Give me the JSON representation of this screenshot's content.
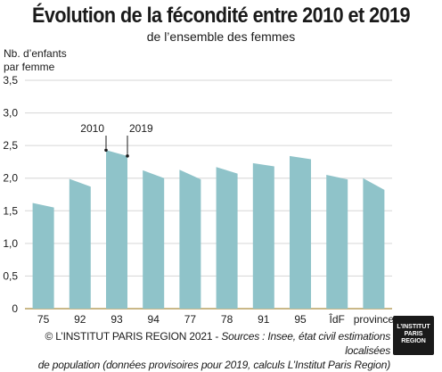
{
  "header": {
    "title": "Évolution de la fécondité entre 2010 et 2019",
    "subtitle": "de l’ensemble des femmes"
  },
  "unit_label_line1": "Nb. d’enfants",
  "unit_label_line2": "par femme",
  "footer": {
    "copyright": "© L’INSTITUT PARIS REGION 2021 - ",
    "sources_line1": "Sources : Insee, état civil estimations localisées",
    "sources_line2": "de population (données provisoires pour 2019, calculs L’Institut Paris Region)"
  },
  "logo": {
    "line1": "L’INSTITUT",
    "line2": "PARIS",
    "line3": "REGION"
  },
  "colors": {
    "bar": "#8fc3c9",
    "grid": "#d6d6d6",
    "axis": "#b8a060"
  },
  "chart_data": {
    "type": "area",
    "title": "Évolution de la fécondité entre 2010 et 2019",
    "subtitle": "de l’ensemble des femmes",
    "ylabel": "Nb. d’enfants par femme",
    "categories": [
      "75",
      "92",
      "93",
      "94",
      "77",
      "78",
      "91",
      "95",
      "ÎdF",
      "province"
    ],
    "series": [
      {
        "name": "2010",
        "values": [
          1.62,
          1.99,
          2.43,
          2.12,
          2.13,
          2.17,
          2.23,
          2.34,
          2.05,
          2.0
        ]
      },
      {
        "name": "2019",
        "values": [
          1.55,
          1.87,
          2.34,
          2.0,
          1.98,
          2.07,
          2.18,
          2.29,
          1.98,
          1.82
        ]
      }
    ],
    "ylim": [
      0,
      3.5
    ],
    "yticks": [
      "0",
      "0,5",
      "1,0",
      "1,5",
      "2,0",
      "2,5",
      "3,0",
      "3,5"
    ],
    "grid": true,
    "annotations": [
      "2010",
      "2019"
    ]
  }
}
